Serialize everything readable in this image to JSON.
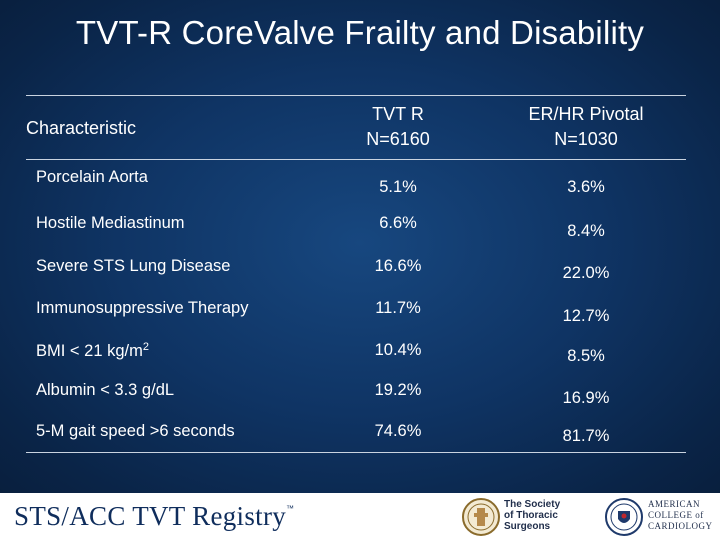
{
  "slide": {
    "title": "TVT-R CoreValve Frailty and Disability"
  },
  "table": {
    "header": {
      "characteristic": "Characteristic",
      "col1_line1": "TVT R",
      "col1_line2": "N=6160",
      "col2_line1": "ER/HR Pivotal",
      "col2_line2": "N=1030"
    },
    "rows": [
      {
        "label": "Porcelain Aorta",
        "v1": "5.1%",
        "v2": "3.6%"
      },
      {
        "label": "Hostile Mediastinum",
        "v1": "6.6%",
        "v2": "8.4%"
      },
      {
        "label": "Severe STS Lung Disease",
        "v1": "16.6%",
        "v2": "22.0%"
      },
      {
        "label": "Immunosuppressive Therapy",
        "v1": "11.7%",
        "v2": "12.7%"
      },
      {
        "label": "BMI < 21 kg/m",
        "label_sup": "2",
        "v1": "10.4%",
        "v2": "8.5%"
      },
      {
        "label": "Albumin < 3.3 g/dL",
        "v1": "19.2%",
        "v2": "16.9%"
      },
      {
        "label": "5-M gait speed >6 seconds",
        "v1": "74.6%",
        "v2": "81.7%"
      }
    ]
  },
  "footer": {
    "brand": "STS/ACC TVT Registry",
    "trademark": "™",
    "sts_line1": "The Society",
    "sts_line2": "of Thoracic",
    "sts_line3": "Surgeons",
    "acc_line1": "AMERICAN",
    "acc_line2": "COLLEGE of",
    "acc_line3": "CARDIOLOGY"
  },
  "colors": {
    "background": "#0f3464",
    "text": "#ffffff",
    "footer_brand": "#0f2d5c"
  }
}
